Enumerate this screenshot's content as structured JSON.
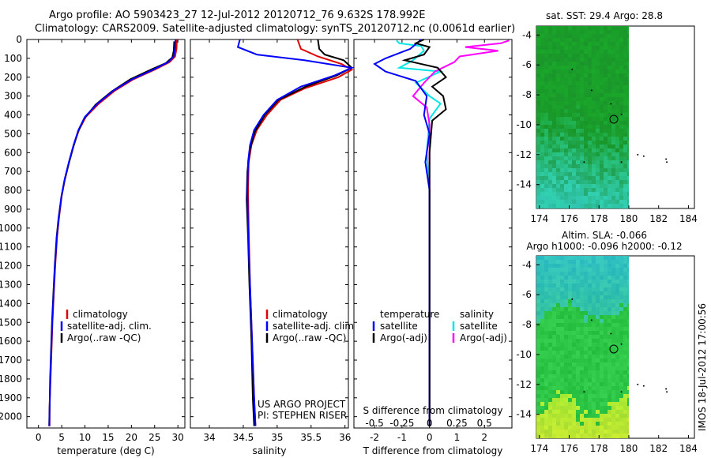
{
  "header": {
    "title_line1": "Argo profile: AO 5903423_27 12-Jul-2012 20120712_76 9.632S 178.992E",
    "title_line2": "Climatology: CARS2009. Satellite-adjusted climatology: synTS_20120712.nc (0.0061d earlier)"
  },
  "stamp": "IMOS 18-Jul-2012 17:00:56",
  "depth_ticks": [
    0,
    100,
    200,
    300,
    400,
    500,
    600,
    700,
    800,
    900,
    1000,
    1100,
    1200,
    1300,
    1400,
    1500,
    1600,
    1700,
    1800,
    1900,
    2000
  ],
  "chart_data": [
    {
      "type": "line",
      "xlabel": "temperature (deg C)",
      "xticks": [
        0,
        5,
        10,
        15,
        20,
        25,
        30
      ],
      "xlim": [
        -2.5,
        31.5
      ],
      "ylim": [
        2060,
        0
      ],
      "legend": [
        "climatology",
        "satellite-adj. clim.",
        "Argo(..raw -QC)"
      ],
      "series": [
        {
          "name": "climatology",
          "color": "#e00000",
          "points": [
            [
              29.8,
              0
            ],
            [
              29.7,
              50
            ],
            [
              29.4,
              90
            ],
            [
              28.2,
              120
            ],
            [
              25,
              160
            ],
            [
              20.5,
              210
            ],
            [
              16.5,
              270
            ],
            [
              13,
              340
            ],
            [
              10.2,
              410
            ],
            [
              8.7,
              480
            ],
            [
              7.6,
              560
            ],
            [
              6.6,
              650
            ],
            [
              5.7,
              740
            ],
            [
              5.0,
              830
            ],
            [
              4.4,
              950
            ],
            [
              4.0,
              1050
            ],
            [
              3.6,
              1200
            ],
            [
              3.3,
              1350
            ],
            [
              3.0,
              1500
            ],
            [
              2.8,
              1650
            ],
            [
              2.6,
              1800
            ],
            [
              2.4,
              1950
            ],
            [
              2.4,
              2050
            ]
          ]
        },
        {
          "name": "Argo(..raw -QC)",
          "color": "#000000",
          "points": [
            [
              29.2,
              10
            ],
            [
              29.1,
              60
            ],
            [
              28.8,
              95
            ],
            [
              27.4,
              125
            ],
            [
              24.2,
              160
            ],
            [
              19.8,
              210
            ],
            [
              15.8,
              275
            ],
            [
              12.3,
              345
            ],
            [
              9.8,
              420
            ],
            [
              8.5,
              490
            ],
            [
              7.5,
              570
            ],
            [
              6.5,
              660
            ],
            [
              5.6,
              750
            ],
            [
              4.9,
              840
            ],
            [
              4.3,
              950
            ],
            [
              3.9,
              1050
            ],
            [
              3.5,
              1200
            ],
            [
              3.2,
              1350
            ],
            [
              2.9,
              1500
            ],
            [
              2.7,
              1650
            ],
            [
              2.5,
              1800
            ],
            [
              2.4,
              1950
            ],
            [
              2.3,
              2050
            ]
          ]
        },
        {
          "name": "satellite-adj. clim.",
          "color": "#0000ff",
          "points": [
            [
              29.5,
              0
            ],
            [
              29.4,
              50
            ],
            [
              29.1,
              90
            ],
            [
              27.9,
              120
            ],
            [
              24.7,
              160
            ],
            [
              20.2,
              210
            ],
            [
              16.2,
              270
            ],
            [
              12.7,
              340
            ],
            [
              10.0,
              410
            ],
            [
              8.6,
              480
            ],
            [
              7.55,
              560
            ],
            [
              6.55,
              650
            ],
            [
              5.65,
              740
            ],
            [
              4.95,
              830
            ],
            [
              4.35,
              950
            ],
            [
              3.95,
              1050
            ],
            [
              3.55,
              1200
            ],
            [
              3.25,
              1350
            ],
            [
              2.95,
              1500
            ],
            [
              2.75,
              1650
            ],
            [
              2.55,
              1800
            ],
            [
              2.4,
              1950
            ],
            [
              2.35,
              2050
            ]
          ]
        }
      ]
    },
    {
      "type": "line",
      "xlabel": "salinity",
      "xticks": [
        34,
        34.5,
        35,
        35.5,
        36
      ],
      "xtick_labels": [
        "34",
        "34.5",
        "35",
        "35.5",
        "36"
      ],
      "xlim": [
        33.72,
        36.05
      ],
      "ylim": [
        2060,
        0
      ],
      "legend": [
        "climatology",
        "satellite-adj. clim.",
        "Argo(..raw -QC)"
      ],
      "footer": [
        "US ARGO PROJECT",
        "PI: STEPHEN RISER"
      ],
      "series": [
        {
          "name": "climatology",
          "color": "#e00000",
          "points": [
            [
              35.3,
              0
            ],
            [
              35.35,
              50
            ],
            [
              35.6,
              90
            ],
            [
              35.95,
              130
            ],
            [
              36.1,
              160
            ],
            [
              35.9,
              200
            ],
            [
              35.4,
              260
            ],
            [
              35.05,
              320
            ],
            [
              34.85,
              400
            ],
            [
              34.7,
              480
            ],
            [
              34.62,
              560
            ],
            [
              34.58,
              650
            ],
            [
              34.57,
              800
            ],
            [
              34.58,
              1000
            ],
            [
              34.6,
              1300
            ],
            [
              34.63,
              1600
            ],
            [
              34.66,
              1900
            ],
            [
              34.68,
              2050
            ]
          ]
        },
        {
          "name": "Argo(..raw -QC)",
          "color": "#000000",
          "points": [
            [
              35.6,
              0
            ],
            [
              35.62,
              50
            ],
            [
              35.7,
              80
            ],
            [
              35.98,
              110
            ],
            [
              36.1,
              150
            ],
            [
              35.88,
              190
            ],
            [
              35.42,
              250
            ],
            [
              35.02,
              320
            ],
            [
              34.82,
              400
            ],
            [
              34.67,
              490
            ],
            [
              34.6,
              580
            ],
            [
              34.56,
              700
            ],
            [
              34.55,
              850
            ],
            [
              34.57,
              1050
            ],
            [
              34.59,
              1300
            ],
            [
              34.62,
              1600
            ],
            [
              34.64,
              1900
            ],
            [
              34.66,
              2050
            ]
          ]
        },
        {
          "name": "satellite-adj. clim.",
          "color": "#0000ff",
          "points": [
            [
              34.45,
              0
            ],
            [
              34.42,
              40
            ],
            [
              34.7,
              80
            ],
            [
              35.4,
              110
            ],
            [
              36.1,
              150
            ],
            [
              35.85,
              190
            ],
            [
              35.35,
              250
            ],
            [
              35.0,
              320
            ],
            [
              34.8,
              400
            ],
            [
              34.66,
              480
            ],
            [
              34.6,
              560
            ],
            [
              34.57,
              650
            ],
            [
              34.56,
              800
            ],
            [
              34.57,
              1000
            ],
            [
              34.6,
              1300
            ],
            [
              34.63,
              1600
            ],
            [
              34.66,
              1900
            ],
            [
              34.68,
              2050
            ]
          ]
        }
      ]
    },
    {
      "type": "line",
      "xlabel_s": "S difference from climatology",
      "xlabel_t": "T difference from climatology",
      "xticks_s": [
        -0.5,
        -0.25,
        0,
        0.25,
        0.5
      ],
      "xtick_labels_s": [
        "-0.5",
        "-0.25",
        "0",
        "0.25",
        "0.5"
      ],
      "xticks_t": [
        -2,
        -1,
        0,
        1,
        2
      ],
      "xtick_labels_t": [
        "-2",
        "-1",
        "0",
        "1",
        "2"
      ],
      "xlim": [
        -2.75,
        3.0
      ],
      "ylim": [
        2060,
        0
      ],
      "legend_temperature_title": "temperature",
      "legend_salinity_title": "salinity",
      "legend_temperature": [
        "satellite",
        "Argo(-adj)"
      ],
      "legend_salinity": [
        "satellite",
        "Argo(-adj)"
      ],
      "series": [
        {
          "name": "salinity satellite",
          "color": "#00e5e5",
          "points": [
            [
              -1.2,
              5
            ],
            [
              -1.1,
              20
            ],
            [
              -0.3,
              35
            ],
            [
              -0.2,
              60
            ],
            [
              -0.6,
              110
            ],
            [
              -1.1,
              150
            ],
            [
              0.4,
              170
            ],
            [
              -0.5,
              230
            ],
            [
              0.0,
              300
            ],
            [
              0.4,
              340
            ],
            [
              0.0,
              420
            ],
            [
              -0.1,
              600
            ],
            [
              0.0,
              800
            ],
            [
              0.0,
              1200
            ],
            [
              0.0,
              2050
            ]
          ]
        },
        {
          "name": "salinity Argo(-adj)",
          "color": "#ff00ff",
          "points": [
            [
              2.9,
              5
            ],
            [
              2.6,
              20
            ],
            [
              1.3,
              40
            ],
            [
              2.5,
              60
            ],
            [
              1.1,
              90
            ],
            [
              0.9,
              120
            ],
            [
              0.2,
              170
            ],
            [
              -0.2,
              230
            ],
            [
              -0.6,
              300
            ],
            [
              -0.1,
              360
            ],
            [
              0.0,
              450
            ],
            [
              0.0,
              800
            ],
            [
              0.0,
              2050
            ]
          ]
        },
        {
          "name": "temperature satellite",
          "color": "#0000ff",
          "points": [
            [
              -0.3,
              0
            ],
            [
              -0.7,
              50
            ],
            [
              -1.6,
              100
            ],
            [
              -2.0,
              130
            ],
            [
              -1.6,
              170
            ],
            [
              -0.5,
              220
            ],
            [
              -0.1,
              300
            ],
            [
              -0.2,
              400
            ],
            [
              0.0,
              500
            ],
            [
              -0.15,
              650
            ],
            [
              0.0,
              800
            ],
            [
              0.0,
              1200
            ],
            [
              0.0,
              2050
            ]
          ]
        },
        {
          "name": "temperature Argo(-adj)",
          "color": "#000000",
          "points": [
            [
              -0.2,
              0
            ],
            [
              -0.5,
              20
            ],
            [
              0.0,
              40
            ],
            [
              -0.2,
              80
            ],
            [
              -0.9,
              110
            ],
            [
              0.3,
              150
            ],
            [
              0.6,
              200
            ],
            [
              0.1,
              250
            ],
            [
              0.5,
              300
            ],
            [
              0.6,
              370
            ],
            [
              0.1,
              430
            ],
            [
              0.0,
              600
            ],
            [
              0.0,
              1100
            ],
            [
              0.0,
              1800
            ],
            [
              0.0,
              2050
            ]
          ]
        }
      ]
    },
    {
      "type": "heatmap",
      "title": "sat. SST: 29.4 Argo: 28.8",
      "xticks": [
        174,
        176,
        178,
        180,
        182,
        184
      ],
      "yticks": [
        -4,
        -6,
        -8,
        -10,
        -12,
        -14
      ],
      "xlim": [
        173.8,
        184.4
      ],
      "ylim": [
        -15.6,
        -3.4
      ],
      "profile_marker": {
        "lon": 178.992,
        "lat": -9.632
      },
      "colors": {
        "high": "#1a9e2a",
        "low": "#30c8b0",
        "mid": "#24b840"
      }
    },
    {
      "type": "heatmap",
      "title_line1": "Altim. SLA: -0.066",
      "title_line2": "Argo h1000: -0.096 h2000: -0.12",
      "xticks": [
        174,
        176,
        178,
        180,
        182,
        184
      ],
      "yticks": [
        -4,
        -6,
        -8,
        -10,
        -12,
        -14
      ],
      "xlim": [
        173.8,
        184.4
      ],
      "ylim": [
        -15.6,
        -3.4
      ],
      "profile_marker": {
        "lon": 178.992,
        "lat": -9.632
      },
      "colors": {
        "high": "#a8e83a",
        "low": "#28b8c0",
        "mid": "#26c040"
      }
    }
  ]
}
